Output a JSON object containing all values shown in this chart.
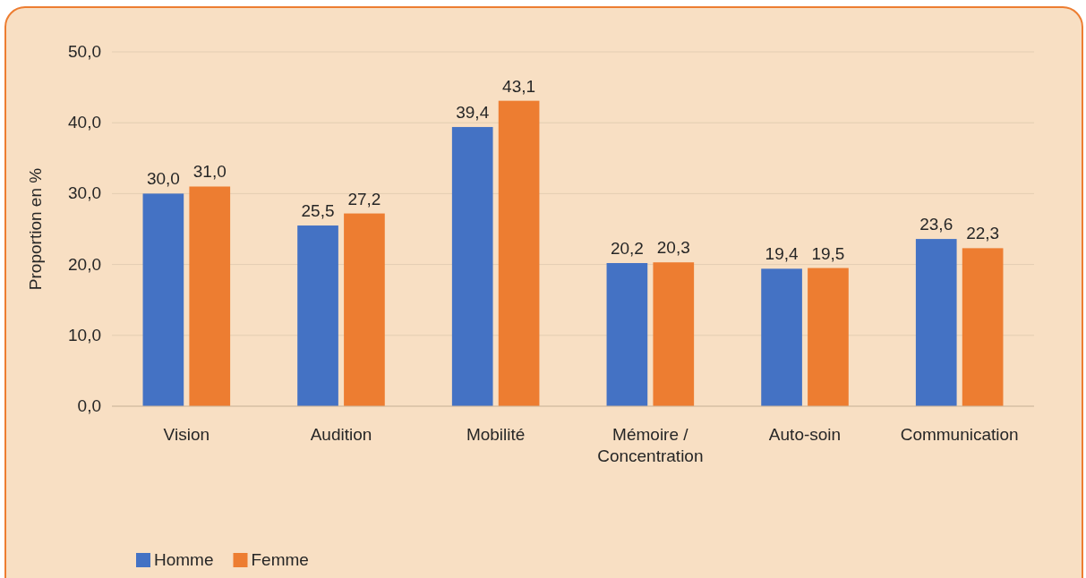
{
  "chart_data": {
    "type": "bar",
    "ylabel": "Proportion en %",
    "categories": [
      "Vision",
      "Audition",
      "Mobilité",
      "Mémoire / Concentration",
      "Auto-soin",
      "Communication"
    ],
    "series": [
      {
        "name": "Homme",
        "color": "#4472c4",
        "values": [
          30.0,
          25.5,
          39.4,
          20.2,
          19.4,
          23.6
        ],
        "value_labels": [
          "30,0",
          "25,5",
          "39,4",
          "20,2",
          "19,4",
          "23,6"
        ]
      },
      {
        "name": "Femme",
        "color": "#ed7d31",
        "values": [
          31.0,
          27.2,
          43.1,
          20.3,
          19.5,
          22.3
        ],
        "value_labels": [
          "31,0",
          "27,2",
          "43,1",
          "20,3",
          "19,5",
          "22,3"
        ]
      }
    ],
    "ylim": [
      0,
      50
    ],
    "yticks": [
      {
        "value": 0,
        "label": "0,0"
      },
      {
        "value": 10,
        "label": "10,0"
      },
      {
        "value": 20,
        "label": "20,0"
      },
      {
        "value": 30,
        "label": "30,0"
      },
      {
        "value": 40,
        "label": "40,0"
      },
      {
        "value": 50,
        "label": "50,0"
      }
    ],
    "grid": "y",
    "legend": "bottom left"
  }
}
